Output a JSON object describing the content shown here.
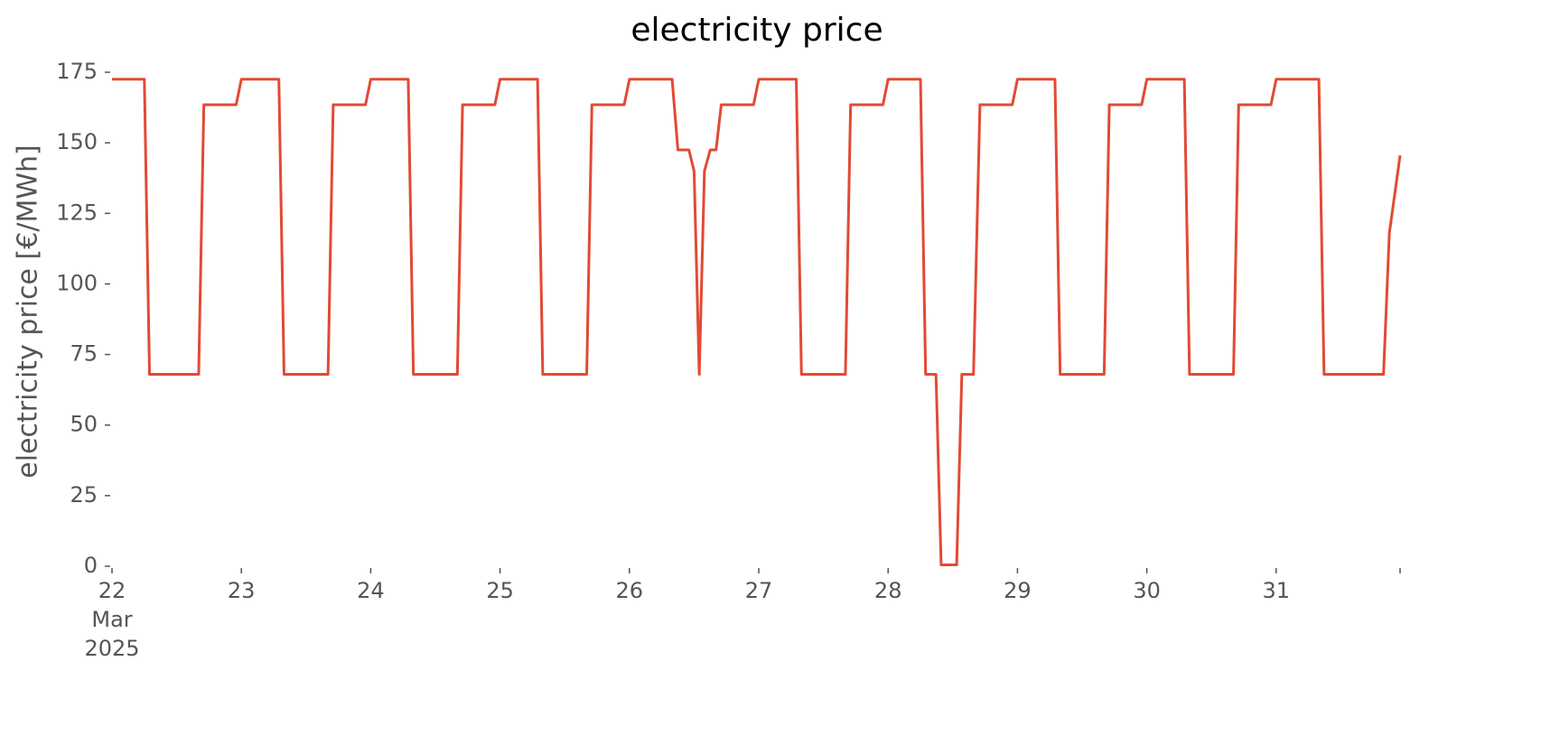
{
  "chart_data": {
    "type": "line",
    "title": "electricity price",
    "ylabel": "electricity price [€/MWh]",
    "x": [
      22,
      22.25,
      22.29,
      22.67,
      22.71,
      22.96,
      23,
      23.29,
      23.33,
      23.67,
      23.71,
      23.96,
      24,
      24.29,
      24.33,
      24.67,
      24.71,
      24.96,
      25,
      25.29,
      25.33,
      25.67,
      25.71,
      25.96,
      26,
      26.33,
      26.375,
      26.46,
      26.5,
      26.54,
      26.58,
      26.625,
      26.67,
      26.71,
      26.96,
      27,
      27.29,
      27.33,
      27.67,
      27.71,
      27.96,
      28,
      28.25,
      28.29,
      28.37,
      28.41,
      28.53,
      28.57,
      28.66,
      28.71,
      28.96,
      29,
      29.29,
      29.33,
      29.67,
      29.71,
      29.96,
      30,
      30.29,
      30.33,
      30.67,
      30.71,
      30.96,
      31,
      31.33,
      31.37,
      31.83,
      31.875,
      31.958
    ],
    "series": [
      {
        "name": "electricity price",
        "color": "#e24a33",
        "values": [
          172.5,
          172.5,
          68,
          68,
          163.5,
          163.5,
          172.5,
          172.5,
          68,
          68,
          163.5,
          163.5,
          172.5,
          172.5,
          68,
          68,
          163.5,
          163.5,
          172.5,
          172.5,
          68,
          68,
          163.5,
          163.5,
          172.5,
          172.5,
          147.5,
          147.5,
          140,
          68,
          140,
          147.5,
          147.5,
          163.5,
          163.5,
          172.5,
          172.5,
          68,
          68,
          163.5,
          163.5,
          172.5,
          172.5,
          68,
          68,
          0.5,
          0.5,
          68,
          68,
          163.5,
          163.5,
          172.5,
          172.5,
          68,
          68,
          163.5,
          163.5,
          172.5,
          172.5,
          68,
          68,
          163.5,
          163.5,
          172.5,
          172.5,
          68,
          68,
          118,
          145.5
        ]
      }
    ],
    "xlim": [
      22,
      31.958
    ],
    "xticks": [
      {
        "value": 22,
        "label": "22\nMar\n2025"
      },
      23,
      24,
      25,
      26,
      27,
      28,
      29,
      30,
      31
    ],
    "ylim": [
      0,
      175
    ],
    "yticks": [
      0,
      25,
      50,
      75,
      100,
      125,
      150,
      175
    ],
    "grid": false
  }
}
